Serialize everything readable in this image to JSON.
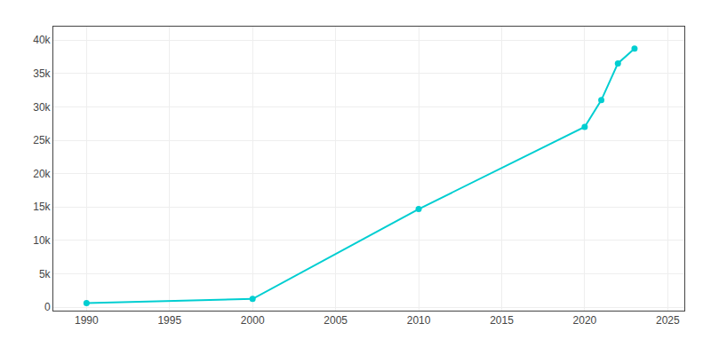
{
  "chart_data": {
    "type": "line",
    "x": [
      1990,
      2000,
      2010,
      2020,
      2021,
      2022,
      2023
    ],
    "values": [
      630,
      1250,
      14698,
      27000,
      31000,
      36500,
      38700
    ],
    "color": "#00CED1",
    "marker": "circle",
    "xlim": [
      1988,
      2026
    ],
    "ylim": [
      -500,
      42000
    ],
    "xticks": [
      1990,
      1995,
      2000,
      2005,
      2010,
      2015,
      2020,
      2025
    ],
    "yticks": [
      0,
      {
        "value": 5000,
        "label": "5k"
      },
      {
        "value": 10000,
        "label": "10k"
      },
      {
        "value": 15000,
        "label": "15k"
      },
      {
        "value": 20000,
        "label": "20k"
      },
      {
        "value": 25000,
        "label": "25k"
      },
      {
        "value": 30000,
        "label": "30k"
      },
      {
        "value": 35000,
        "label": "35k"
      },
      {
        "value": 40000,
        "label": "40k"
      }
    ],
    "grid": true
  }
}
